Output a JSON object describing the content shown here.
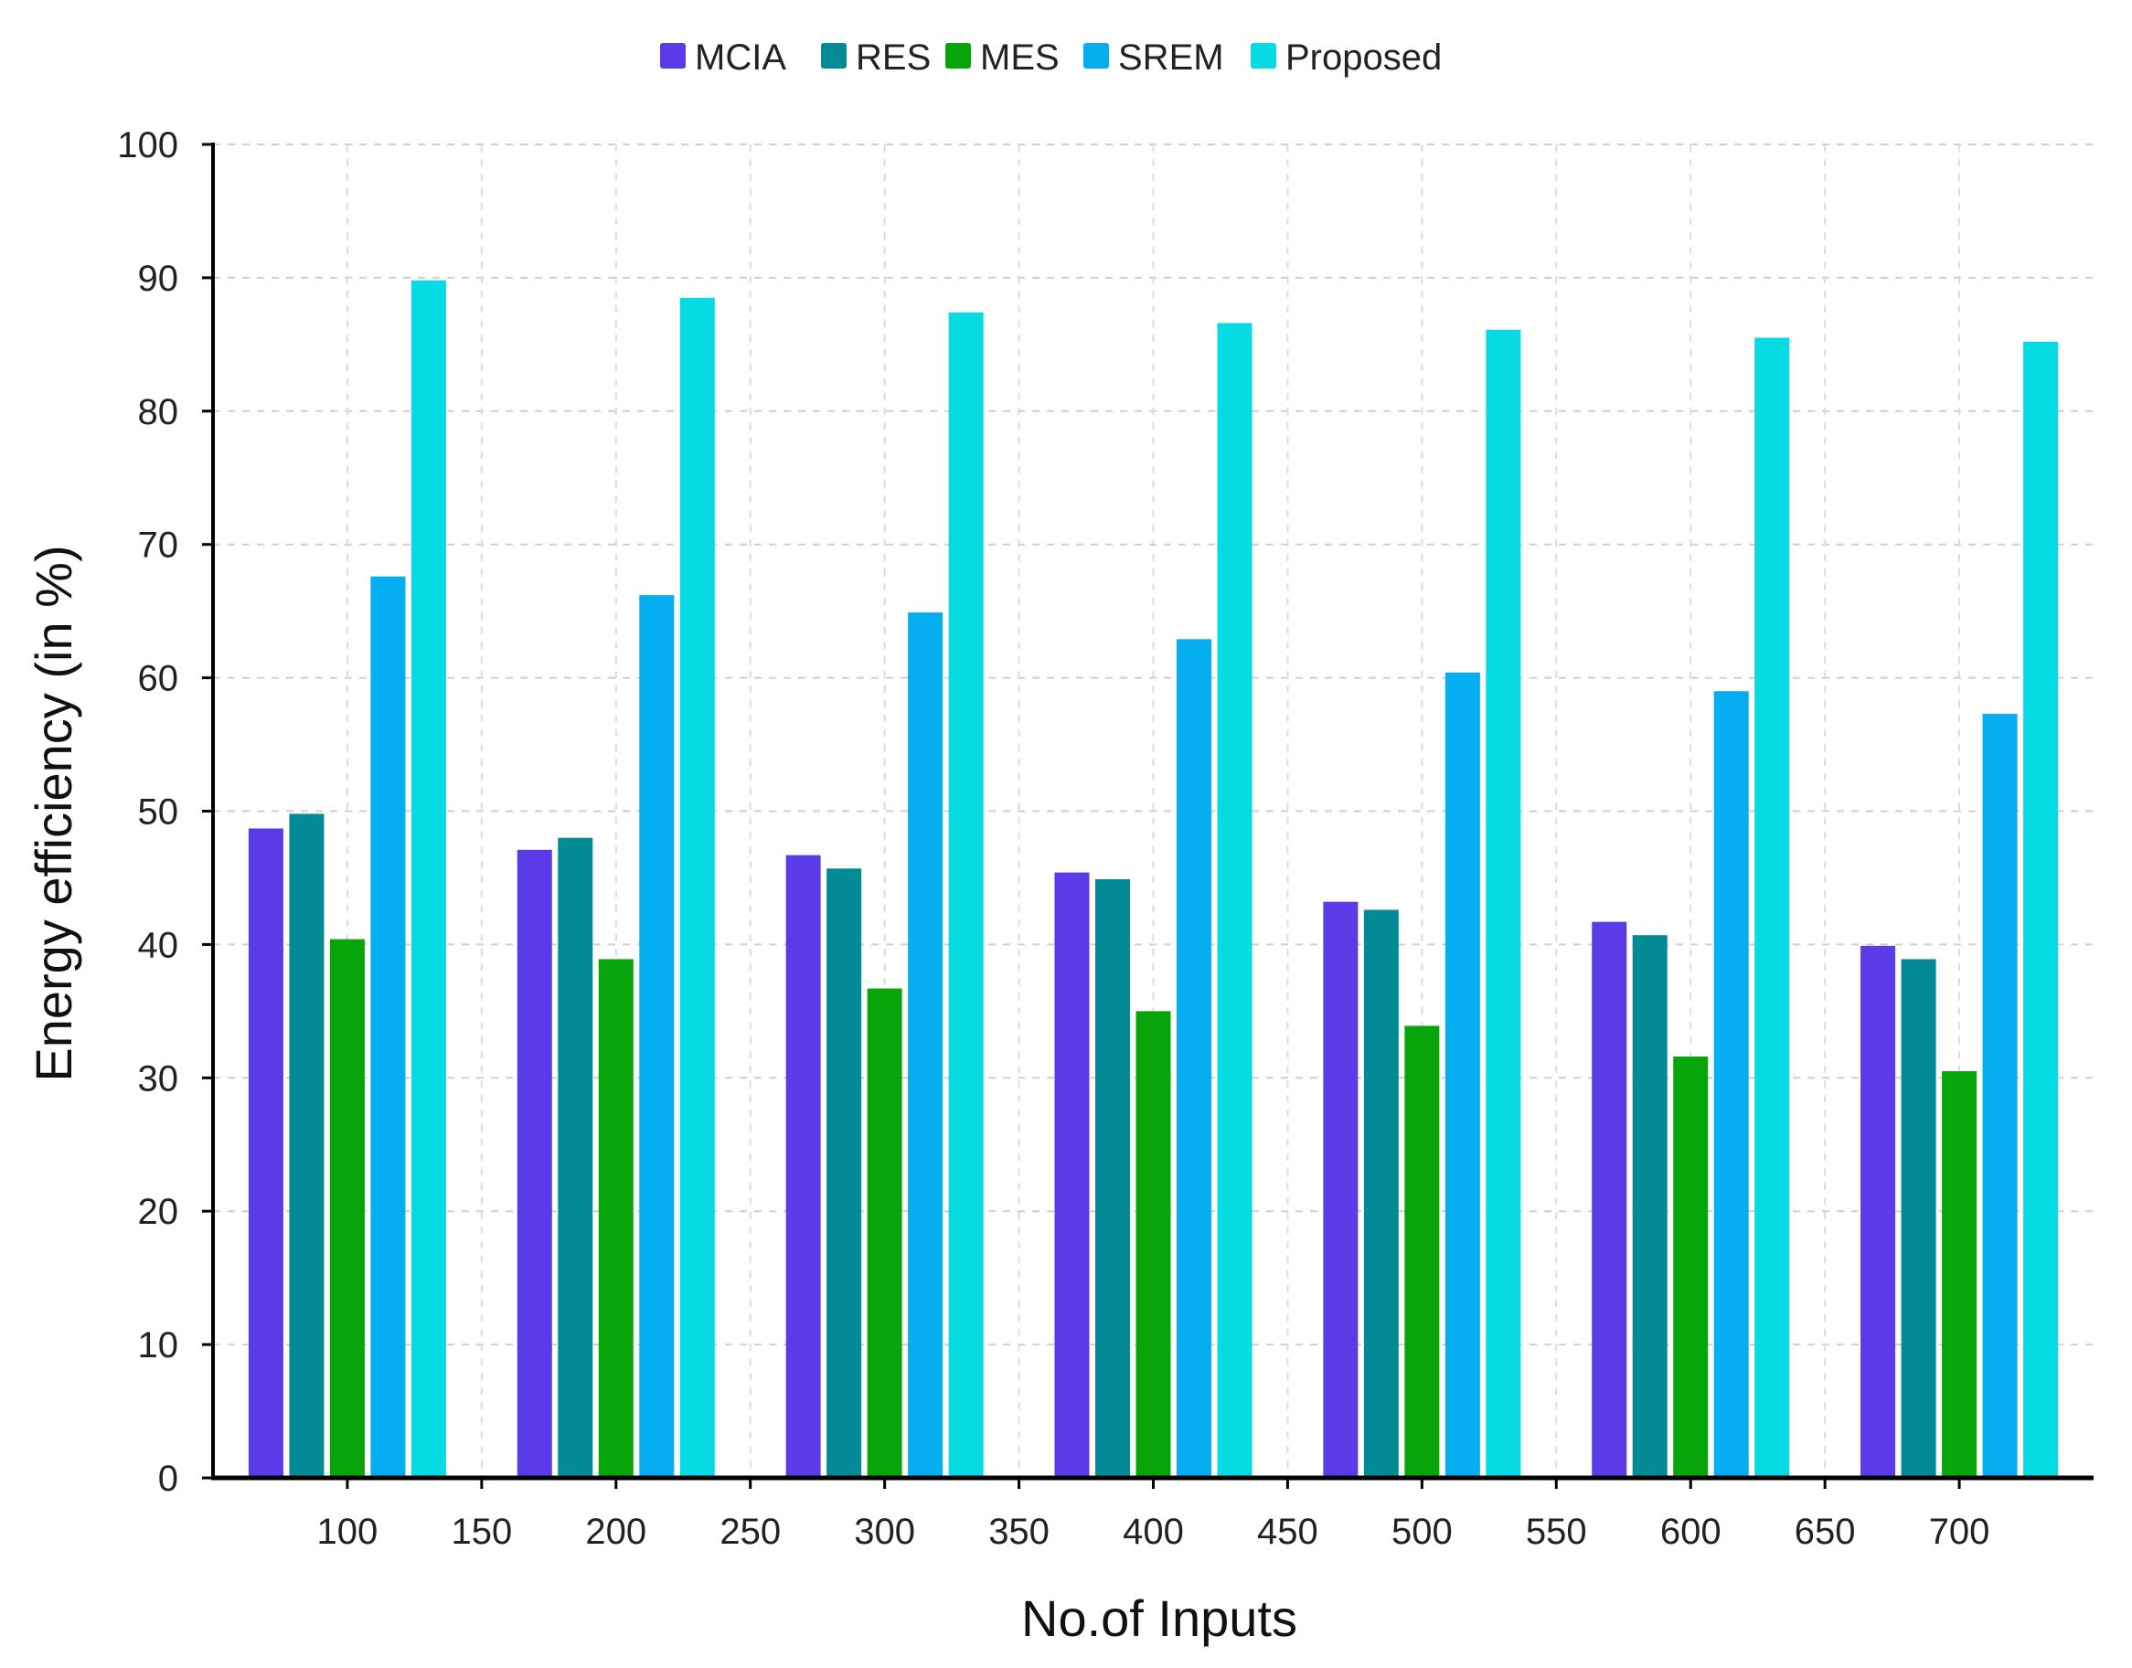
{
  "chart_data": {
    "type": "bar",
    "title": "",
    "xlabel": "No.of Inputs",
    "ylabel": "Energy efficiency (in %)",
    "ylim": [
      0,
      100
    ],
    "yticks": [
      0,
      10,
      20,
      30,
      40,
      50,
      60,
      70,
      80,
      90,
      100
    ],
    "xlim": [
      50,
      750
    ],
    "xticks": [
      100,
      150,
      200,
      250,
      300,
      350,
      400,
      450,
      500,
      550,
      600,
      650,
      700
    ],
    "categories": [
      100,
      200,
      300,
      400,
      500,
      600,
      700
    ],
    "grid": true,
    "legend_position": "top-center",
    "series": [
      {
        "name": "MCIA",
        "color": "#5b3be8",
        "values": [
          48.7,
          47.1,
          46.7,
          45.4,
          43.2,
          41.7,
          39.9
        ]
      },
      {
        "name": "RES",
        "color": "#028a96",
        "values": [
          49.8,
          48.0,
          45.7,
          44.9,
          42.6,
          40.7,
          38.9
        ]
      },
      {
        "name": "MES",
        "color": "#08a50a",
        "values": [
          40.4,
          38.9,
          36.7,
          35.0,
          33.9,
          31.6,
          30.5
        ]
      },
      {
        "name": "SREM",
        "color": "#04aef0",
        "values": [
          67.6,
          66.2,
          64.9,
          62.9,
          60.4,
          59.0,
          57.3
        ]
      },
      {
        "name": "Proposed",
        "color": "#06dbe4",
        "values": [
          89.8,
          88.5,
          87.4,
          86.6,
          86.1,
          85.5,
          85.2
        ]
      }
    ]
  }
}
